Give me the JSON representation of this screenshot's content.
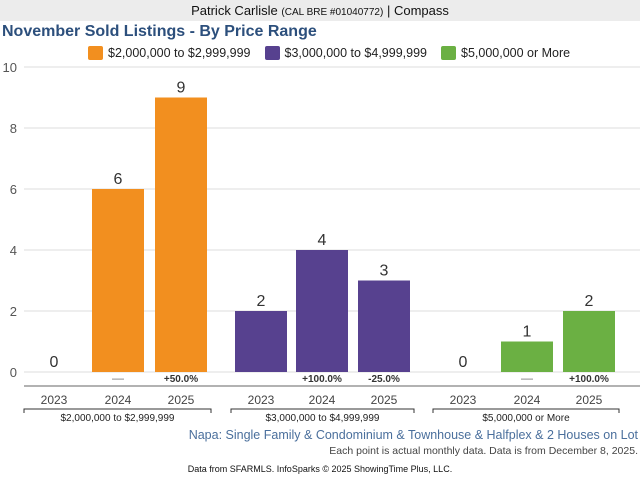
{
  "header": {
    "agent_name": "Patrick Carlisle",
    "license": "(CAL BRE #01040772)",
    "separator": "|",
    "brokerage": "Compass"
  },
  "chart_data": {
    "type": "bar",
    "title": "November Sold Listings - By Price Range",
    "xlabel": "",
    "ylabel": "",
    "ylim": [
      0,
      10
    ],
    "yticks": [
      0,
      2,
      4,
      6,
      8,
      10
    ],
    "grid": true,
    "legend_position": "top",
    "years": [
      "2023",
      "2024",
      "2025"
    ],
    "series": [
      {
        "name": "$2,000,000 to $2,999,999",
        "color": "#f28f1f",
        "values": [
          0,
          6,
          9
        ],
        "changes": [
          "",
          "—",
          "+50.0%"
        ]
      },
      {
        "name": "$3,000,000 to $4,999,999",
        "color": "#57418f",
        "values": [
          2,
          4,
          3
        ],
        "changes": [
          "",
          "+100.0%",
          "-25.0%"
        ]
      },
      {
        "name": "$5,000,000 or More",
        "color": "#6bb043",
        "values": [
          0,
          1,
          2
        ],
        "changes": [
          "",
          "—",
          "+100.0%"
        ]
      }
    ],
    "group_labels": [
      "$2,000,000 to $2,999,999",
      "$3,000,000 to $4,999,999",
      "$5,000,000 or More"
    ]
  },
  "footer": {
    "subtitle": "Napa: Single Family & Condominium & Townhouse & Halfplex & 2 Houses on Lot",
    "note": "Each point is actual monthly data. Data is from December 8, 2025.",
    "source": "Data from SFARMLS. InfoSparks © 2025 ShowingTime Plus, LLC."
  }
}
